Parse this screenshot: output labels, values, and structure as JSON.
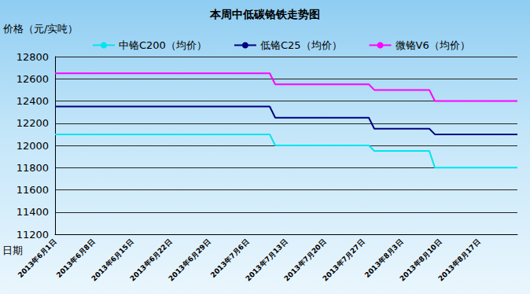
{
  "chart_data": {
    "type": "line",
    "title": "本周中低碳铬铁走势图",
    "y_label": "价格（元/实吨）",
    "x_label": "日期",
    "categories": [
      "2013年6月1日",
      null,
      null,
      null,
      null,
      null,
      null,
      "2013年6月8日",
      null,
      null,
      null,
      null,
      null,
      null,
      "2013年6月15日",
      null,
      null,
      null,
      null,
      null,
      null,
      "2013年6月22日",
      null,
      null,
      null,
      null,
      null,
      null,
      "2013年6月29日",
      null,
      null,
      null,
      null,
      null,
      null,
      "2013年7月6日",
      null,
      null,
      null,
      null,
      null,
      null,
      "2013年7月13日",
      null,
      null,
      null,
      null,
      null,
      null,
      "2013年7月20日",
      null,
      null,
      null,
      null,
      null,
      null,
      "2013年7月27日",
      null,
      null,
      null,
      null,
      null,
      null,
      "2013年8月3日",
      null,
      null,
      null,
      null,
      null,
      null,
      "2013年8月10日",
      null,
      null,
      null,
      null,
      null,
      null,
      "2013年8月17日",
      null,
      null,
      null,
      null,
      null,
      null,
      null
    ],
    "series": [
      {
        "name": "中铬C200（均价）",
        "color": "#00e5ee",
        "values": [
          12100,
          12100,
          12100,
          12100,
          12100,
          12100,
          12100,
          12100,
          12100,
          12100,
          12100,
          12100,
          12100,
          12100,
          12100,
          12100,
          12100,
          12100,
          12100,
          12100,
          12100,
          12100,
          12100,
          12100,
          12100,
          12100,
          12100,
          12100,
          12100,
          12100,
          12100,
          12100,
          12100,
          12100,
          12100,
          12100,
          12100,
          12100,
          12100,
          12100,
          12000,
          12000,
          12000,
          12000,
          12000,
          12000,
          12000,
          12000,
          12000,
          12000,
          12000,
          12000,
          12000,
          12000,
          12000,
          12000,
          12000,
          12000,
          11950,
          11950,
          11950,
          11950,
          11950,
          11950,
          11950,
          11950,
          11950,
          11950,
          11950,
          11800,
          11800,
          11800,
          11800,
          11800,
          11800,
          11800,
          11800,
          11800,
          11800,
          11800,
          11800,
          11800,
          11800,
          11800,
          11800
        ]
      },
      {
        "name": "低铬C25（均价）",
        "color": "#000080",
        "values": [
          12350,
          12350,
          12350,
          12350,
          12350,
          12350,
          12350,
          12350,
          12350,
          12350,
          12350,
          12350,
          12350,
          12350,
          12350,
          12350,
          12350,
          12350,
          12350,
          12350,
          12350,
          12350,
          12350,
          12350,
          12350,
          12350,
          12350,
          12350,
          12350,
          12350,
          12350,
          12350,
          12350,
          12350,
          12350,
          12350,
          12350,
          12350,
          12350,
          12350,
          12250,
          12250,
          12250,
          12250,
          12250,
          12250,
          12250,
          12250,
          12250,
          12250,
          12250,
          12250,
          12250,
          12250,
          12250,
          12250,
          12250,
          12250,
          12150,
          12150,
          12150,
          12150,
          12150,
          12150,
          12150,
          12150,
          12150,
          12150,
          12150,
          12100,
          12100,
          12100,
          12100,
          12100,
          12100,
          12100,
          12100,
          12100,
          12100,
          12100,
          12100,
          12100,
          12100,
          12100,
          12100
        ]
      },
      {
        "name": "微铬V6（均价）",
        "color": "#ff00ff",
        "values": [
          12650,
          12650,
          12650,
          12650,
          12650,
          12650,
          12650,
          12650,
          12650,
          12650,
          12650,
          12650,
          12650,
          12650,
          12650,
          12650,
          12650,
          12650,
          12650,
          12650,
          12650,
          12650,
          12650,
          12650,
          12650,
          12650,
          12650,
          12650,
          12650,
          12650,
          12650,
          12650,
          12650,
          12650,
          12650,
          12650,
          12650,
          12650,
          12650,
          12650,
          12550,
          12550,
          12550,
          12550,
          12550,
          12550,
          12550,
          12550,
          12550,
          12550,
          12550,
          12550,
          12550,
          12550,
          12550,
          12550,
          12550,
          12550,
          12500,
          12500,
          12500,
          12500,
          12500,
          12500,
          12500,
          12500,
          12500,
          12500,
          12500,
          12400,
          12400,
          12400,
          12400,
          12400,
          12400,
          12400,
          12400,
          12400,
          12400,
          12400,
          12400,
          12400,
          12400,
          12400,
          12400
        ]
      }
    ],
    "ylim": [
      11200,
      12800
    ],
    "yticks": [
      11200,
      11400,
      11600,
      11800,
      12000,
      12200,
      12400,
      12600,
      12800
    ],
    "grid": true,
    "legend": "top"
  }
}
